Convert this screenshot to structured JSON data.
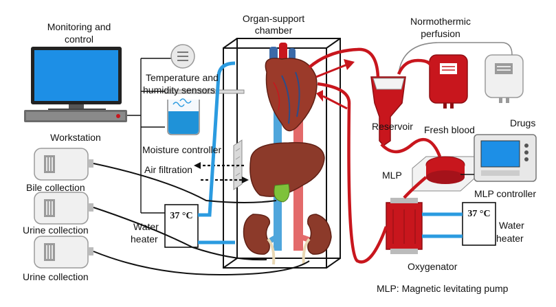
{
  "labels": {
    "monitoring_line1": "Monitoring and",
    "monitoring_line2": "control",
    "workstation": "Workstation",
    "organ_chamber_line1": "Organ-support",
    "organ_chamber_line2": "chamber",
    "normothermic_line1": "Normothermic",
    "normothermic_line2": "perfusion",
    "temp_sensors_line1": "Temperature and",
    "temp_sensors_line2": "humidity sensors",
    "moisture_controller": "Moisture controller",
    "air_filtration": "Air filtration",
    "bile_collection": "Bile collection",
    "urine_collection_1": "Urine collection",
    "urine_collection_2": "Urine collection",
    "heater_left_line1": "Water",
    "heater_left_line2": "heater",
    "heater_left_temp": "37 °C",
    "heater_right_line1": "Water",
    "heater_right_line2": "heater",
    "heater_right_temp": "37 °C",
    "reservoir": "Reservoir",
    "fresh_blood": "Fresh blood",
    "drugs": "Drugs",
    "mlp": "MLP",
    "mlp_controller": "MLP controller",
    "oxygenator": "Oxygenator",
    "footnote": "MLP: Magnetic levitating pump"
  },
  "colors": {
    "blood": "#c8161d",
    "blood_dark": "#8e0d12",
    "water": "#2b9be0",
    "artery": "#e36a6a",
    "vein": "#4fa6dc",
    "organ": "#8c3a2a",
    "bile": "#7ec23a",
    "screen": "#1d8fe6",
    "line": "#111111"
  }
}
